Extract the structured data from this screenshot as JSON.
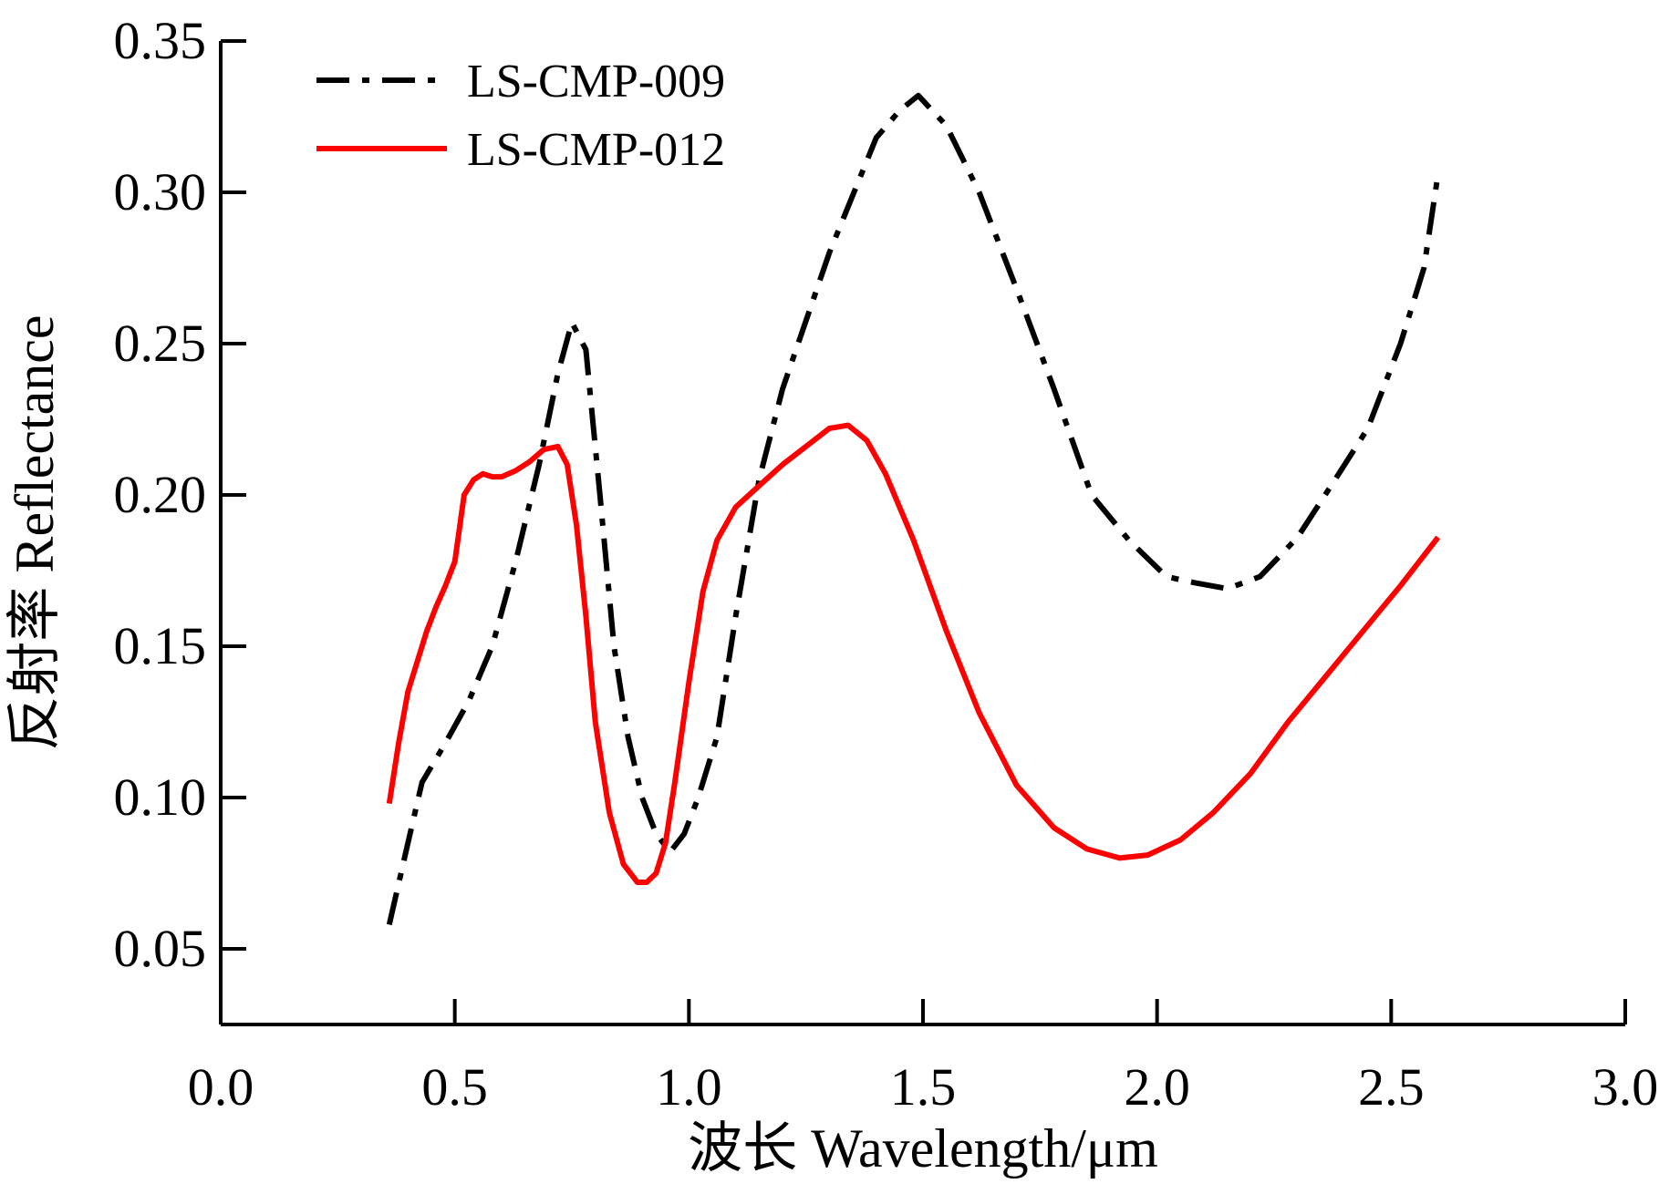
{
  "chart_data": {
    "type": "line",
    "title": "",
    "xlabel": "波长 Wavelength/μm",
    "ylabel": "反射率 Reflectance",
    "xlim": [
      0.0,
      3.0
    ],
    "ylim": [
      0.025,
      0.35
    ],
    "x_ticks": [
      0.0,
      0.5,
      1.0,
      1.5,
      2.0,
      2.5,
      3.0
    ],
    "x_tick_labels": [
      "0.0",
      "0.5",
      "1.0",
      "1.5",
      "2.0",
      "2.5",
      "3.0"
    ],
    "y_ticks": [
      0.05,
      0.1,
      0.15,
      0.2,
      0.25,
      0.3,
      0.35
    ],
    "y_tick_labels": [
      "0.05",
      "0.10",
      "0.15",
      "0.20",
      "0.25",
      "0.30",
      "0.35"
    ],
    "grid": false,
    "legend_position": "top-left",
    "series": [
      {
        "name": "LS-CMP-009",
        "color": "#000000",
        "style": "dash-dot",
        "x": [
          0.36,
          0.4,
          0.43,
          0.48,
          0.53,
          0.58,
          0.63,
          0.68,
          0.72,
          0.75,
          0.78,
          0.81,
          0.84,
          0.87,
          0.9,
          0.93,
          0.96,
          0.99,
          1.02,
          1.06,
          1.1,
          1.15,
          1.2,
          1.3,
          1.4,
          1.45,
          1.49,
          1.55,
          1.62,
          1.7,
          1.78,
          1.86,
          1.94,
          2.02,
          2.08,
          2.15,
          2.22,
          2.3,
          2.38,
          2.45,
          2.52,
          2.57,
          2.6
        ],
        "y": [
          0.058,
          0.085,
          0.105,
          0.118,
          0.132,
          0.15,
          0.178,
          0.21,
          0.24,
          0.257,
          0.248,
          0.2,
          0.15,
          0.12,
          0.1,
          0.088,
          0.082,
          0.088,
          0.1,
          0.12,
          0.16,
          0.205,
          0.235,
          0.28,
          0.318,
          0.327,
          0.332,
          0.322,
          0.3,
          0.268,
          0.235,
          0.2,
          0.185,
          0.173,
          0.171,
          0.169,
          0.173,
          0.186,
          0.205,
          0.222,
          0.25,
          0.275,
          0.306
        ]
      },
      {
        "name": "LS-CMP-012",
        "color": "#ff0000",
        "style": "solid",
        "x": [
          0.36,
          0.38,
          0.4,
          0.42,
          0.44,
          0.46,
          0.48,
          0.5,
          0.52,
          0.54,
          0.56,
          0.58,
          0.6,
          0.63,
          0.66,
          0.69,
          0.72,
          0.74,
          0.76,
          0.78,
          0.8,
          0.83,
          0.86,
          0.89,
          0.91,
          0.93,
          0.95,
          0.97,
          1.0,
          1.03,
          1.06,
          1.1,
          1.15,
          1.2,
          1.25,
          1.3,
          1.34,
          1.38,
          1.42,
          1.48,
          1.55,
          1.62,
          1.7,
          1.78,
          1.85,
          1.92,
          1.98,
          2.05,
          2.12,
          2.2,
          2.28,
          2.36,
          2.44,
          2.52,
          2.57,
          2.6
        ],
        "y": [
          0.098,
          0.118,
          0.135,
          0.145,
          0.155,
          0.163,
          0.17,
          0.178,
          0.2,
          0.205,
          0.207,
          0.206,
          0.206,
          0.208,
          0.211,
          0.215,
          0.216,
          0.21,
          0.19,
          0.16,
          0.125,
          0.095,
          0.078,
          0.072,
          0.072,
          0.075,
          0.085,
          0.105,
          0.138,
          0.168,
          0.185,
          0.196,
          0.203,
          0.21,
          0.216,
          0.222,
          0.223,
          0.218,
          0.207,
          0.185,
          0.155,
          0.128,
          0.104,
          0.09,
          0.083,
          0.08,
          0.081,
          0.086,
          0.095,
          0.108,
          0.125,
          0.14,
          0.155,
          0.17,
          0.18,
          0.186
        ]
      }
    ]
  }
}
